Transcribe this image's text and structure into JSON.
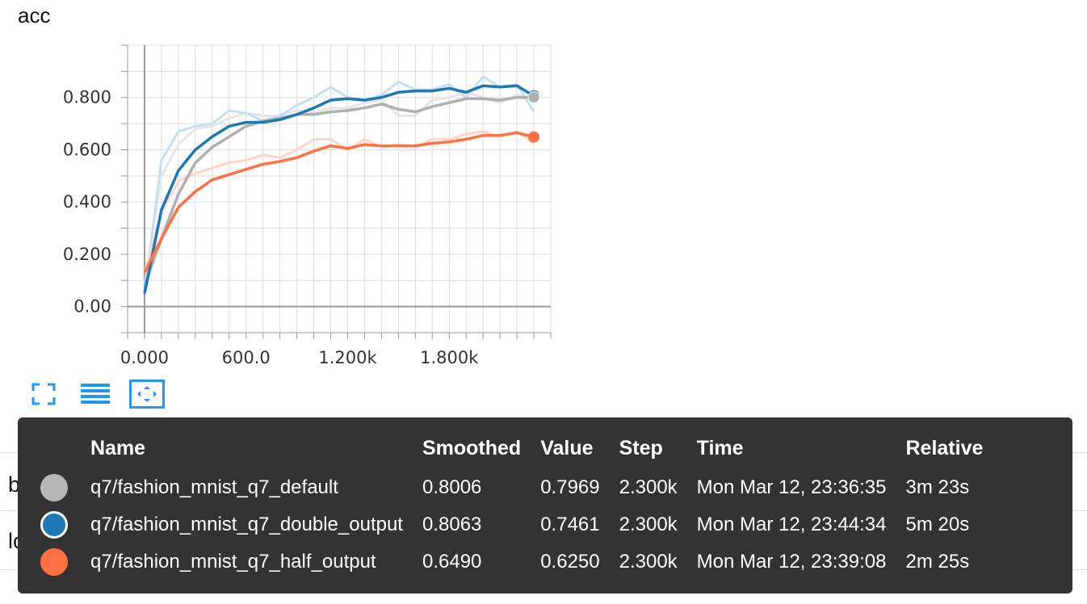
{
  "chart_data": {
    "type": "line",
    "title": "acc",
    "xlabel": "",
    "ylabel": "",
    "xlim": [
      -100,
      2400
    ],
    "ylim": [
      -0.1,
      1.0
    ],
    "x_ticks": [
      0,
      600,
      1200,
      1800
    ],
    "x_tick_labels": [
      "0.000",
      "600.0",
      "1.200k",
      "1.800k"
    ],
    "y_ticks": [
      0,
      0.2,
      0.4,
      0.6,
      0.8
    ],
    "y_tick_labels": [
      "0.00",
      "0.200",
      "0.400",
      "0.600",
      "0.800"
    ],
    "grid": true,
    "x": [
      0,
      100,
      200,
      300,
      400,
      500,
      600,
      700,
      800,
      900,
      1000,
      1100,
      1200,
      1300,
      1400,
      1500,
      1600,
      1700,
      1800,
      1900,
      2000,
      2100,
      2200,
      2300
    ],
    "series": [
      {
        "name": "q7/fashion_mnist_q7_default",
        "color": "#b0b0b0",
        "raw_color": "#e6e6e6",
        "smoothed": [
          0.08,
          0.26,
          0.43,
          0.55,
          0.61,
          0.65,
          0.69,
          0.71,
          0.72,
          0.735,
          0.735,
          0.745,
          0.75,
          0.76,
          0.775,
          0.755,
          0.745,
          0.765,
          0.78,
          0.795,
          0.795,
          0.79,
          0.8,
          0.8006
        ],
        "raw": [
          0.08,
          0.5,
          0.62,
          0.68,
          0.69,
          0.72,
          0.74,
          0.73,
          0.73,
          0.75,
          0.74,
          0.76,
          0.76,
          0.78,
          0.79,
          0.73,
          0.73,
          0.79,
          0.8,
          0.82,
          0.8,
          0.78,
          0.81,
          0.7969
        ]
      },
      {
        "name": "q7/fashion_mnist_q7_double_output",
        "color": "#1f77b4",
        "raw_color": "#c6dff1",
        "smoothed": [
          0.05,
          0.37,
          0.52,
          0.6,
          0.65,
          0.69,
          0.705,
          0.705,
          0.715,
          0.735,
          0.76,
          0.79,
          0.795,
          0.79,
          0.8,
          0.82,
          0.825,
          0.825,
          0.835,
          0.82,
          0.845,
          0.84,
          0.845,
          0.8063
        ],
        "raw": [
          0.05,
          0.56,
          0.67,
          0.69,
          0.7,
          0.75,
          0.74,
          0.71,
          0.73,
          0.77,
          0.8,
          0.84,
          0.8,
          0.79,
          0.81,
          0.86,
          0.83,
          0.83,
          0.85,
          0.8,
          0.88,
          0.84,
          0.85,
          0.7461
        ]
      },
      {
        "name": "q7/fashion_mnist_q7_half_output",
        "color": "#ff7043",
        "raw_color": "#ffd5c8",
        "smoothed": [
          0.13,
          0.26,
          0.38,
          0.44,
          0.485,
          0.505,
          0.525,
          0.545,
          0.555,
          0.57,
          0.595,
          0.615,
          0.605,
          0.62,
          0.615,
          0.615,
          0.615,
          0.625,
          0.63,
          0.64,
          0.655,
          0.655,
          0.665,
          0.649
        ],
        "raw": [
          0.13,
          0.36,
          0.48,
          0.51,
          0.53,
          0.55,
          0.56,
          0.58,
          0.57,
          0.6,
          0.64,
          0.64,
          0.6,
          0.64,
          0.61,
          0.62,
          0.61,
          0.64,
          0.64,
          0.66,
          0.67,
          0.65,
          0.67,
          0.625
        ]
      }
    ]
  },
  "background_rows": [
    "batch",
    "loss"
  ],
  "toolbar": {
    "icons": [
      "fullscreen-icon",
      "list-icon",
      "fit-domain-icon"
    ]
  },
  "tooltip": {
    "headers": {
      "name": "Name",
      "smoothed": "Smoothed",
      "value": "Value",
      "step": "Step",
      "time": "Time",
      "relative": "Relative"
    },
    "rows": [
      {
        "color": "#b7b7b7",
        "selected": false,
        "name": "q7/fashion_mnist_q7_default",
        "smoothed": "0.8006",
        "value": "0.7969",
        "step": "2.300k",
        "time": "Mon Mar 12, 23:36:35",
        "relative": "3m 23s"
      },
      {
        "color": "#1f77b4",
        "selected": true,
        "name": "q7/fashion_mnist_q7_double_output",
        "smoothed": "0.8063",
        "value": "0.7461",
        "step": "2.300k",
        "time": "Mon Mar 12, 23:44:34",
        "relative": "5m 20s"
      },
      {
        "color": "#ff7043",
        "selected": false,
        "name": "q7/fashion_mnist_q7_half_output",
        "smoothed": "0.6490",
        "value": "0.6250",
        "step": "2.300k",
        "time": "Mon Mar 12, 23:39:08",
        "relative": "2m 25s"
      }
    ]
  }
}
